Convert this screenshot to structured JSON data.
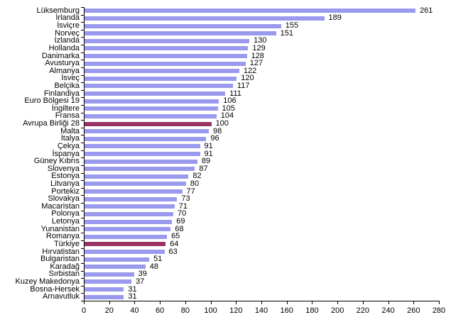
{
  "chart_data": {
    "type": "bar",
    "orientation": "horizontal",
    "title": "",
    "xlabel": "",
    "ylabel": "",
    "legend_position": "none",
    "grid": false,
    "xlim": [
      0,
      280
    ],
    "x_ticks": [
      "0",
      "20",
      "40",
      "60",
      "80",
      "100",
      "120",
      "140",
      "160",
      "180",
      "200",
      "220",
      "240",
      "260",
      "280"
    ],
    "categories": [
      "Lüksemburg",
      "İrlanda",
      "İsviçre",
      "Norveç",
      "İzlanda",
      "Hollanda",
      "Danimarka",
      "Avusturya",
      "Almanya",
      "İsveç",
      "Belçika",
      "Finlandiya",
      "Euro Bölgesi 19",
      "İngiltere",
      "Fransa",
      "Avrupa Birliği 28",
      "Malta",
      "İtalya",
      "Çekya",
      "İspanya",
      "Güney Kıbrıs",
      "Slovenya",
      "Estonya",
      "Litvanya",
      "Portekiz",
      "Slovakya",
      "Macaristan",
      "Polonya",
      "Letonya",
      "Yunanistan",
      "Romanya",
      "Türkiye",
      "Hırvatistan",
      "Bulgaristan",
      "Karadağ",
      "Sırbistan",
      "Kuzey Makedonya",
      "Bosna-Hersek",
      "Arnavutluk"
    ],
    "values": [
      261,
      189,
      155,
      151,
      130,
      129,
      128,
      127,
      122,
      120,
      117,
      111,
      106,
      105,
      104,
      100,
      98,
      96,
      91,
      91,
      89,
      87,
      82,
      80,
      77,
      73,
      71,
      70,
      69,
      68,
      65,
      64,
      63,
      51,
      48,
      39,
      37,
      31,
      31
    ],
    "highlighted_categories": [
      "Avrupa Birliği 28",
      "Türkiye"
    ],
    "bar_color": "#9999EE",
    "highlight_color": "#993366",
    "axis_color": "#000000"
  }
}
